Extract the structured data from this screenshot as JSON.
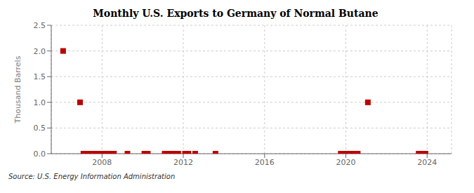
{
  "chart_data": {
    "type": "scatter",
    "title": "Monthly U.S. Exports to Germany of Normal Butane",
    "y_label": "Thousand Barrels",
    "annotations": [
      "Source: U.S. Energy Information Administration"
    ],
    "x": [
      2006.0833,
      2006.9167,
      2007.0833,
      2007.25,
      2007.4167,
      2007.5833,
      2007.75,
      2007.9167,
      2008.0833,
      2008.25,
      2008.4167,
      2008.5833,
      2009.25,
      2010.0833,
      2010.25,
      2011.0833,
      2011.25,
      2011.4167,
      2011.5833,
      2011.75,
      2012.0833,
      2012.25,
      2012.5833,
      2013.5833,
      2019.75,
      2019.9167,
      2020.0833,
      2020.25,
      2020.4167,
      2020.5833,
      2021.0833,
      2023.5833,
      2023.75,
      2023.9167
    ],
    "values": [
      2.0,
      1.0,
      0.0,
      0.0,
      0.0,
      0.0,
      0.0,
      0.0,
      0.0,
      0.0,
      0.0,
      0.0,
      0.0,
      0.0,
      0.0,
      0.0,
      0.0,
      0.0,
      0.0,
      0.0,
      0.0,
      0.0,
      0.0,
      0.0,
      0.0,
      0.0,
      0.0,
      0.0,
      0.0,
      0.0,
      1.0,
      0.0,
      0.0,
      0.0
    ],
    "color": "#bb0000",
    "marker": "square",
    "xlim": [
      2005.5,
      2025.2
    ],
    "xticks": [
      2008,
      2012,
      2016,
      2020,
      2024
    ],
    "ylim": [
      0,
      2.5
    ],
    "yticks": [
      {
        "value": 0.0,
        "label": "0.0"
      },
      0.5,
      {
        "value": 1.0,
        "label": "1.0"
      },
      1.5,
      {
        "value": 2.0,
        "label": "2.0"
      },
      2.5
    ],
    "grid": true
  }
}
